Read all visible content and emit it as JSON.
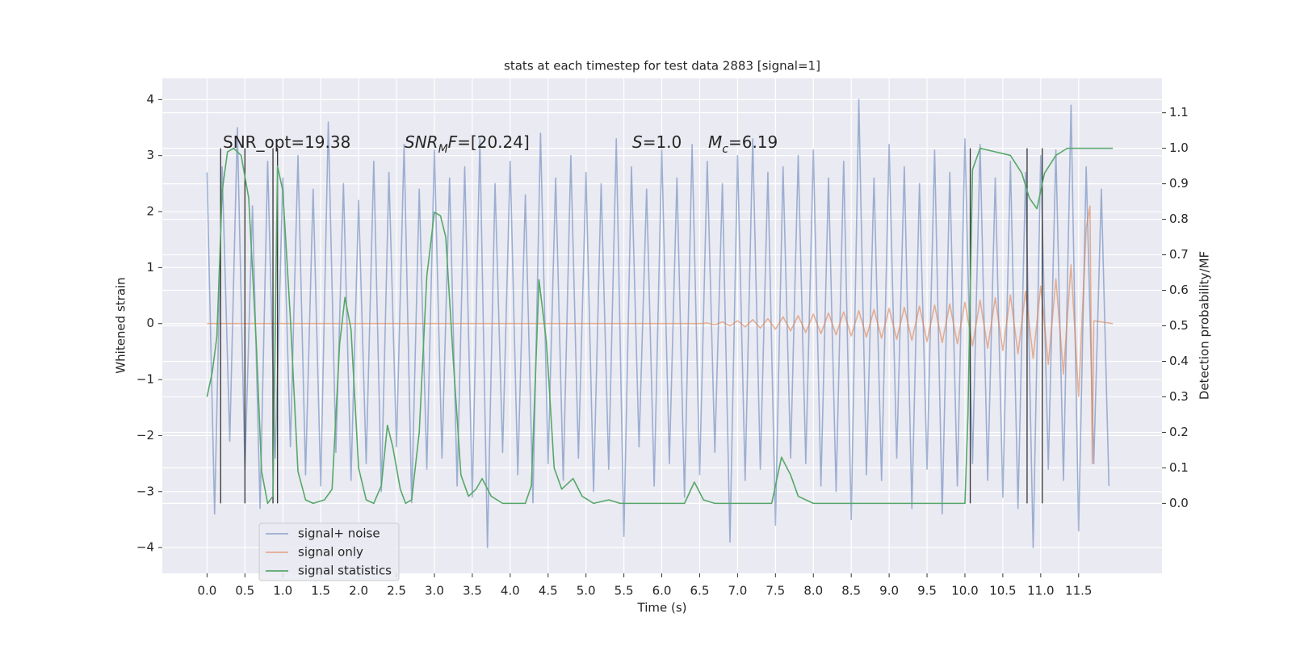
{
  "chart_data": {
    "type": "line",
    "title": "stats at each timestep for test data 2883 [signal=1]",
    "xlabel": "Time (s)",
    "ylabel": "Whitened strain",
    "y2label": "Detection probability/MF",
    "xlim": [
      -0.59,
      12.6
    ],
    "ylim": [
      -4.46,
      4.38
    ],
    "y2lim": [
      -0.197,
      1.197
    ],
    "xticks": [
      {
        "value": 0,
        "label": "0.0"
      },
      0.5,
      {
        "value": 1,
        "label": "1.0"
      },
      1.5,
      {
        "value": 2,
        "label": "2.0"
      },
      2.5,
      {
        "value": 3,
        "label": "3.0"
      },
      3.5,
      {
        "value": 4,
        "label": "4.0"
      },
      4.5,
      {
        "value": 5,
        "label": "5.0"
      },
      5.5,
      {
        "value": 6,
        "label": "6.0"
      },
      6.5,
      {
        "value": 7,
        "label": "7.0"
      },
      7.5,
      {
        "value": 8,
        "label": "8.0"
      },
      8.5,
      {
        "value": 9,
        "label": "9.0"
      },
      9.5,
      {
        "value": 10,
        "label": "10.0"
      },
      10.5,
      {
        "value": 11,
        "label": "11.0"
      },
      11.5
    ],
    "yticks": [
      {
        "value": -4,
        "label": "−4"
      },
      {
        "value": -3,
        "label": "−3"
      },
      {
        "value": -2,
        "label": "−2"
      },
      {
        "value": -1,
        "label": "−1"
      },
      0,
      1,
      2,
      3,
      4
    ],
    "y2ticks": [
      {
        "value": 0,
        "label": "0.0"
      },
      0.1,
      0.2,
      0.3,
      0.4,
      0.5,
      0.6,
      0.7,
      0.8,
      0.9,
      {
        "value": 1,
        "label": "1.0"
      },
      1.1
    ],
    "grid": true,
    "legend": "lower left",
    "series": [
      {
        "name": "signal+ noise",
        "color": "#4c72b0",
        "opacity": 0.5,
        "x": [
          0.0,
          0.1,
          0.2,
          0.3,
          0.4,
          0.5,
          0.6,
          0.7,
          0.8,
          0.9,
          1.0,
          1.1,
          1.2,
          1.3,
          1.4,
          1.5,
          1.6,
          1.7,
          1.8,
          1.9,
          2.0,
          2.1,
          2.2,
          2.3,
          2.4,
          2.5,
          2.6,
          2.7,
          2.8,
          2.9,
          3.0,
          3.1,
          3.2,
          3.3,
          3.4,
          3.5,
          3.6,
          3.7,
          3.8,
          3.9,
          4.0,
          4.1,
          4.2,
          4.3,
          4.4,
          4.5,
          4.6,
          4.7,
          4.8,
          4.9,
          5.0,
          5.1,
          5.2,
          5.3,
          5.4,
          5.5,
          5.6,
          5.7,
          5.8,
          5.9,
          6.0,
          6.1,
          6.2,
          6.3,
          6.4,
          6.5,
          6.6,
          6.7,
          6.8,
          6.9,
          7.0,
          7.1,
          7.2,
          7.3,
          7.4,
          7.5,
          7.6,
          7.7,
          7.8,
          7.9,
          8.0,
          8.1,
          8.2,
          8.3,
          8.4,
          8.5,
          8.6,
          8.7,
          8.8,
          8.9,
          9.0,
          9.1,
          9.2,
          9.3,
          9.4,
          9.5,
          9.6,
          9.7,
          9.8,
          9.9,
          10.0,
          10.1,
          10.2,
          10.3,
          10.4,
          10.5,
          10.6,
          10.7,
          10.8,
          10.9,
          11.0,
          11.1,
          11.2,
          11.3,
          11.4,
          11.5,
          11.6,
          11.7,
          11.8,
          11.9
        ],
        "values": [
          2.7,
          -3.4,
          2.8,
          -2.1,
          3.5,
          -2.6,
          2.1,
          -3.3,
          2.9,
          -2.4,
          2.6,
          -2.2,
          3.0,
          -2.7,
          2.4,
          -2.9,
          3.6,
          -2.3,
          2.5,
          -2.8,
          2.2,
          -2.5,
          2.9,
          -3.0,
          2.7,
          -2.2,
          3.2,
          -3.2,
          2.4,
          -2.6,
          3.1,
          -2.4,
          2.6,
          -2.9,
          2.8,
          -3.1,
          3.3,
          -4.0,
          2.5,
          -2.3,
          2.9,
          -2.7,
          2.3,
          -3.2,
          3.4,
          -2.5,
          2.6,
          -2.8,
          3.0,
          -2.4,
          2.7,
          -3.0,
          2.5,
          -2.6,
          3.3,
          -3.8,
          2.8,
          -2.2,
          2.4,
          -2.9,
          3.1,
          -2.5,
          2.6,
          -3.1,
          3.2,
          -2.7,
          2.9,
          -2.3,
          2.5,
          -3.9,
          3.0,
          -2.8,
          3.3,
          -2.6,
          2.7,
          -3.6,
          2.8,
          -2.4,
          3.0,
          -2.5,
          3.1,
          -2.9,
          2.6,
          -3.0,
          2.9,
          -3.5,
          4.0,
          -2.7,
          2.6,
          -2.8,
          3.2,
          -2.4,
          2.8,
          -3.3,
          2.5,
          -2.6,
          3.1,
          -3.4,
          2.7,
          -2.9,
          3.3,
          -2.5,
          3.2,
          -2.8,
          2.6,
          -3.1,
          2.9,
          -3.3,
          2.7,
          -4.0,
          3.0,
          -2.6,
          3.1,
          -2.8,
          3.9,
          -3.7,
          2.8,
          -2.5,
          2.4,
          -2.9
        ]
      },
      {
        "name": "signal only",
        "color": "#dd8452",
        "opacity": 0.6,
        "x": [
          0.0,
          6.5,
          6.6,
          6.7,
          6.8,
          6.9,
          7.0,
          7.1,
          7.2,
          7.3,
          7.4,
          7.5,
          7.6,
          7.7,
          7.8,
          7.9,
          8.0,
          8.1,
          8.2,
          8.3,
          8.4,
          8.5,
          8.6,
          8.7,
          8.8,
          8.9,
          9.0,
          9.1,
          9.2,
          9.3,
          9.4,
          9.5,
          9.6,
          9.7,
          9.8,
          9.9,
          10.0,
          10.1,
          10.2,
          10.3,
          10.4,
          10.5,
          10.6,
          10.7,
          10.8,
          10.9,
          11.0,
          11.1,
          11.2,
          11.3,
          11.4,
          11.5,
          11.6,
          11.65,
          11.68,
          11.7,
          11.95
        ],
        "values": [
          0.0,
          0.0,
          0.01,
          -0.02,
          0.03,
          -0.04,
          0.05,
          -0.06,
          0.07,
          -0.08,
          0.09,
          -0.1,
          0.12,
          -0.13,
          0.14,
          -0.16,
          0.17,
          -0.18,
          0.19,
          -0.2,
          0.21,
          -0.22,
          0.23,
          -0.24,
          0.25,
          -0.26,
          0.27,
          -0.28,
          0.29,
          -0.3,
          0.31,
          -0.32,
          0.33,
          -0.34,
          0.35,
          -0.36,
          0.38,
          -0.4,
          0.42,
          -0.44,
          0.46,
          -0.48,
          0.51,
          -0.54,
          0.58,
          -0.62,
          0.67,
          -0.73,
          0.8,
          -0.9,
          1.05,
          -1.3,
          1.7,
          2.1,
          -2.5,
          0.05,
          0.0
        ]
      },
      {
        "name": "signal statistics",
        "color": "#55a868",
        "opacity": 1,
        "axis": "y2",
        "x": [
          0.0,
          0.07,
          0.13,
          0.2,
          0.27,
          0.35,
          0.45,
          0.55,
          0.65,
          0.72,
          0.8,
          0.87,
          0.93,
          1.0,
          1.1,
          1.2,
          1.3,
          1.4,
          1.55,
          1.65,
          1.75,
          1.82,
          1.9,
          2.0,
          2.1,
          2.2,
          2.3,
          2.38,
          2.45,
          2.55,
          2.62,
          2.7,
          2.8,
          2.9,
          3.0,
          3.08,
          3.15,
          3.25,
          3.35,
          3.45,
          3.55,
          3.63,
          3.75,
          3.9,
          4.2,
          4.28,
          4.38,
          4.48,
          4.58,
          4.68,
          4.83,
          4.95,
          5.1,
          5.3,
          5.45,
          6.3,
          6.43,
          6.55,
          6.7,
          7.45,
          7.58,
          7.7,
          7.8,
          8.0,
          10.0,
          10.04,
          10.1,
          10.2,
          10.4,
          10.6,
          10.75,
          10.85,
          10.95,
          11.05,
          11.2,
          11.35,
          11.95
        ],
        "values": [
          0.3,
          0.37,
          0.47,
          0.88,
          0.99,
          1.0,
          0.98,
          0.86,
          0.45,
          0.09,
          0.0,
          0.02,
          0.95,
          0.88,
          0.52,
          0.09,
          0.01,
          0.0,
          0.01,
          0.04,
          0.45,
          0.58,
          0.49,
          0.1,
          0.01,
          0.0,
          0.05,
          0.22,
          0.16,
          0.04,
          0.0,
          0.01,
          0.2,
          0.64,
          0.82,
          0.81,
          0.75,
          0.4,
          0.08,
          0.02,
          0.04,
          0.07,
          0.02,
          0.0,
          0.0,
          0.05,
          0.63,
          0.45,
          0.1,
          0.04,
          0.07,
          0.02,
          0.0,
          0.01,
          0.0,
          0.0,
          0.06,
          0.01,
          0.0,
          0.0,
          0.13,
          0.08,
          0.02,
          0.0,
          0.0,
          0.25,
          0.94,
          1.0,
          0.99,
          0.98,
          0.93,
          0.86,
          0.83,
          0.93,
          0.98,
          1.0,
          1.0
        ]
      }
    ],
    "vlines": {
      "color": "#333333",
      "x": [
        0.18,
        0.5,
        0.87,
        0.93,
        10.07,
        10.82,
        11.02
      ],
      "ymin": 0,
      "ymax": 1.0
    },
    "annotations": [
      {
        "parts": [
          {
            "text": "SNR_opt=19.38"
          }
        ]
      },
      {
        "parts": [
          {
            "text": "SNR",
            "style": "italic"
          },
          {
            "text": "M",
            "style": "sub"
          },
          {
            "text": "F",
            "style": "italic"
          },
          {
            "text": "=[20.24]"
          }
        ]
      },
      {
        "parts": [
          {
            "text": "S",
            "style": "italic"
          },
          {
            "text": "=1.0"
          }
        ]
      },
      {
        "parts": [
          {
            "text": "M",
            "style": "italic"
          },
          {
            "text": "c",
            "style": "sub"
          },
          {
            "text": "=6.19"
          }
        ]
      }
    ]
  }
}
